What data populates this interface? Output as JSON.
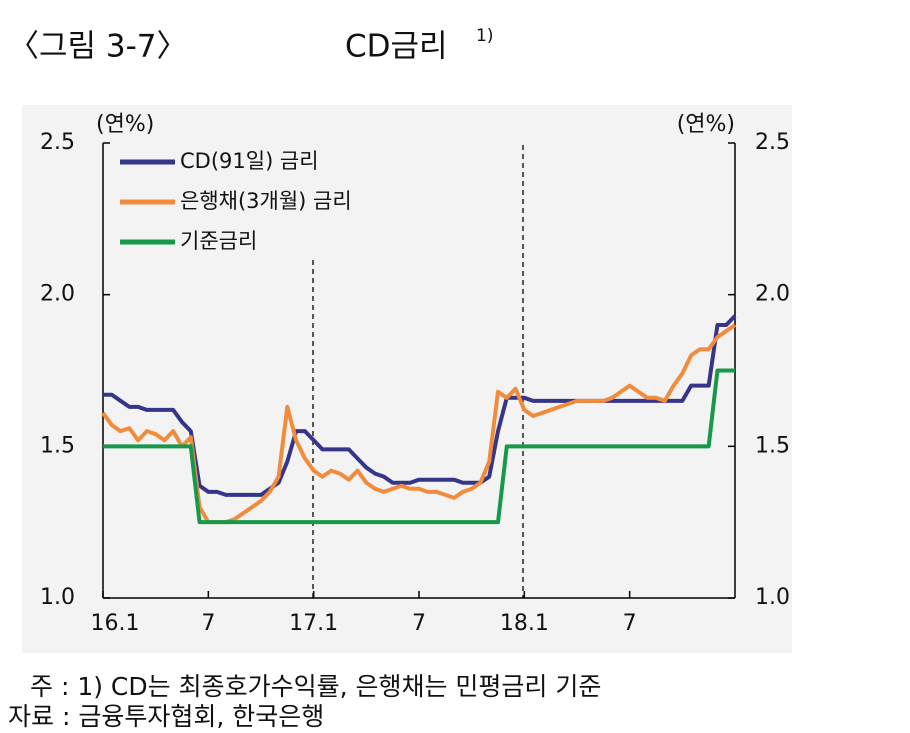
{
  "chart_data": {
    "type": "line",
    "figure_label": "〈그림 3-7〉",
    "title": "CD금리",
    "title_sup": "1)",
    "y_label": "(연%)",
    "y2_label": "(연%)",
    "categories": [
      "16.1",
      null,
      null,
      null,
      null,
      null,
      null,
      null,
      null,
      null,
      null,
      null,
      "7",
      null,
      null,
      null,
      null,
      null,
      null,
      null,
      null,
      null,
      null,
      null,
      "17.1",
      null,
      null,
      null,
      null,
      null,
      null,
      null,
      null,
      null,
      null,
      null,
      "7",
      null,
      null,
      null,
      null,
      null,
      null,
      null,
      null,
      null,
      null,
      null,
      "18.1",
      null,
      null,
      null,
      null,
      null,
      null,
      null,
      null,
      null,
      null,
      null,
      "7",
      null,
      null,
      null,
      null,
      null,
      null,
      null,
      null,
      null,
      null,
      null,
      null
    ],
    "series": [
      {
        "name": "CD(91일) 금리",
        "color": "#35358a",
        "values": [
          1.67,
          1.67,
          1.65,
          1.63,
          1.63,
          1.62,
          1.62,
          1.62,
          1.62,
          1.58,
          1.55,
          1.37,
          1.35,
          1.35,
          1.34,
          1.34,
          1.34,
          1.34,
          1.34,
          1.36,
          1.38,
          1.45,
          1.55,
          1.55,
          1.52,
          1.49,
          1.49,
          1.49,
          1.49,
          1.46,
          1.43,
          1.41,
          1.4,
          1.38,
          1.38,
          1.38,
          1.39,
          1.39,
          1.39,
          1.39,
          1.39,
          1.38,
          1.38,
          1.38,
          1.4,
          1.55,
          1.66,
          1.66,
          1.66,
          1.65,
          1.65,
          1.65,
          1.65,
          1.65,
          1.65,
          1.65,
          1.65,
          1.65,
          1.65,
          1.65,
          1.65,
          1.65,
          1.65,
          1.65,
          1.65,
          1.65,
          1.65,
          1.7,
          1.7,
          1.7,
          1.9,
          1.9,
          1.93
        ]
      },
      {
        "name": "은행채(3개월) 금리",
        "color": "#f28c3c",
        "values": [
          1.61,
          1.57,
          1.55,
          1.56,
          1.52,
          1.55,
          1.54,
          1.52,
          1.55,
          1.5,
          1.53,
          1.3,
          1.25,
          1.25,
          1.25,
          1.26,
          1.28,
          1.3,
          1.32,
          1.35,
          1.4,
          1.63,
          1.52,
          1.46,
          1.42,
          1.4,
          1.42,
          1.41,
          1.39,
          1.42,
          1.38,
          1.36,
          1.35,
          1.36,
          1.37,
          1.36,
          1.36,
          1.35,
          1.35,
          1.34,
          1.33,
          1.35,
          1.36,
          1.38,
          1.45,
          1.68,
          1.66,
          1.69,
          1.62,
          1.6,
          1.61,
          1.62,
          1.63,
          1.64,
          1.65,
          1.65,
          1.65,
          1.65,
          1.66,
          1.68,
          1.7,
          1.68,
          1.66,
          1.66,
          1.65,
          1.7,
          1.74,
          1.8,
          1.82,
          1.82,
          1.86,
          1.88,
          1.9
        ]
      },
      {
        "name": "기준금리",
        "color": "#16994a",
        "values": [
          1.5,
          1.5,
          1.5,
          1.5,
          1.5,
          1.5,
          1.5,
          1.5,
          1.5,
          1.5,
          1.5,
          1.25,
          1.25,
          1.25,
          1.25,
          1.25,
          1.25,
          1.25,
          1.25,
          1.25,
          1.25,
          1.25,
          1.25,
          1.25,
          1.25,
          1.25,
          1.25,
          1.25,
          1.25,
          1.25,
          1.25,
          1.25,
          1.25,
          1.25,
          1.25,
          1.25,
          1.25,
          1.25,
          1.25,
          1.25,
          1.25,
          1.25,
          1.25,
          1.25,
          1.25,
          1.25,
          1.5,
          1.5,
          1.5,
          1.5,
          1.5,
          1.5,
          1.5,
          1.5,
          1.5,
          1.5,
          1.5,
          1.5,
          1.5,
          1.5,
          1.5,
          1.5,
          1.5,
          1.5,
          1.5,
          1.5,
          1.5,
          1.5,
          1.5,
          1.5,
          1.75,
          1.75,
          1.75
        ]
      }
    ],
    "ylim": [
      1.0,
      2.5
    ],
    "yticks": [
      {
        "value": 1.0,
        "label": "1.0"
      },
      1.5,
      {
        "value": 2.0,
        "label": "2.0"
      },
      2.5
    ],
    "y2lim": [
      1.0,
      2.5
    ],
    "y2ticks": [
      {
        "value": 1.0,
        "label": "1.0"
      },
      1.5,
      {
        "value": 2.0,
        "label": "2.0"
      },
      2.5
    ],
    "legend": "upper left",
    "footnotes": [
      "주 : 1) CD는 최종호가수익률, 은행채는 민평금리 기준",
      "자료 : 금융투자협회, 한국은행"
    ]
  }
}
